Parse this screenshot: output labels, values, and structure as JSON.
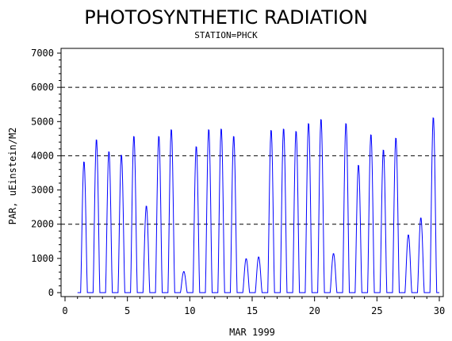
{
  "chart_data": {
    "type": "line",
    "title": "PHOTOSYNTHETIC RADIATION",
    "subtitle": "STATION=PHCK",
    "xlabel": "MAR 1999",
    "ylabel": "PAR, uEinstein/M2",
    "xlim": [
      0,
      30
    ],
    "ylim": [
      0,
      7000
    ],
    "x_ticks": [
      "0",
      "5",
      "10",
      "15",
      "20",
      "25",
      "30"
    ],
    "y_ticks": [
      "0",
      "1000",
      "2000",
      "3000",
      "4000",
      "5000",
      "6000",
      "7000"
    ],
    "reference_lines": [
      2000,
      4000,
      6000
    ],
    "series_color": "#0000ff",
    "daily_peaks": [
      {
        "day": 1,
        "peak": 3850
      },
      {
        "day": 2,
        "peak": 4500
      },
      {
        "day": 3,
        "peak": 4150
      },
      {
        "day": 4,
        "peak": 4050
      },
      {
        "day": 5,
        "peak": 4600
      },
      {
        "day": 6,
        "peak": 2550
      },
      {
        "day": 7,
        "peak": 4600
      },
      {
        "day": 8,
        "peak": 4800
      },
      {
        "day": 9,
        "peak": 620
      },
      {
        "day": 10,
        "peak": 4300
      },
      {
        "day": 11,
        "peak": 4800
      },
      {
        "day": 12,
        "peak": 4820
      },
      {
        "day": 13,
        "peak": 4600
      },
      {
        "day": 14,
        "peak": 1000
      },
      {
        "day": 15,
        "peak": 1050
      },
      {
        "day": 16,
        "peak": 4780
      },
      {
        "day": 17,
        "peak": 4820
      },
      {
        "day": 18,
        "peak": 4750
      },
      {
        "day": 19,
        "peak": 4980
      },
      {
        "day": 20,
        "peak": 5100
      },
      {
        "day": 21,
        "peak": 1150
      },
      {
        "day": 22,
        "peak": 4980
      },
      {
        "day": 23,
        "peak": 3750
      },
      {
        "day": 24,
        "peak": 4650
      },
      {
        "day": 25,
        "peak": 4200
      },
      {
        "day": 26,
        "peak": 4550
      },
      {
        "day": 27,
        "peak": 1700
      },
      {
        "day": 28,
        "peak": 2200
      },
      {
        "day": 29,
        "peak": 5150
      }
    ]
  }
}
